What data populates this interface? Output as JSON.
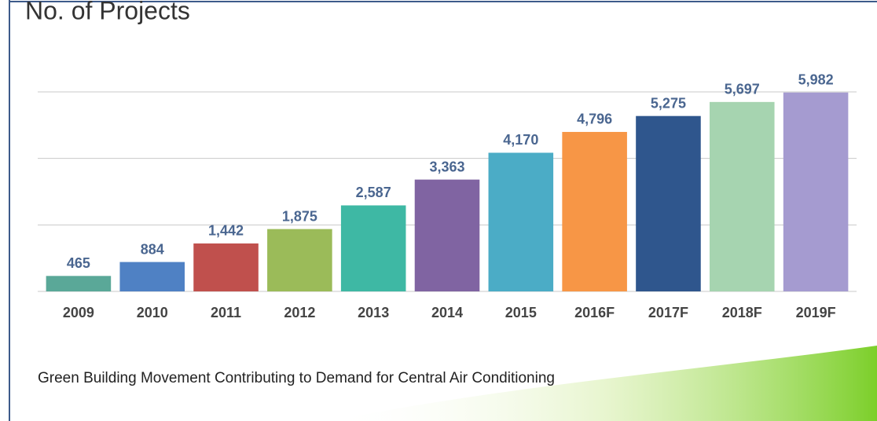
{
  "chart_data": {
    "type": "bar",
    "title": "No. of Projects",
    "caption": "Green Building Movement Contributing to Demand for Central Air Conditioning",
    "categories": [
      "2009",
      "2010",
      "2011",
      "2012",
      "2013",
      "2014",
      "2015",
      "2016F",
      "2017F",
      "2018F",
      "2019F"
    ],
    "values": [
      465,
      884,
      1442,
      1875,
      2587,
      3363,
      4170,
      4796,
      5275,
      5697,
      5982
    ],
    "value_labels": [
      "465",
      "884",
      "1,442",
      "1,875",
      "2,587",
      "3,363",
      "4,170",
      "4,796",
      "5,275",
      "5,697",
      "5,982"
    ],
    "colors": [
      "#5aa898",
      "#4f81c4",
      "#c0504d",
      "#9bbb59",
      "#3eb8a4",
      "#8064a2",
      "#4bacc6",
      "#f79646",
      "#2f568d",
      "#a6d4b0",
      "#a59bd0"
    ],
    "ylim": [
      0,
      6000
    ],
    "yticks": [
      0,
      2000,
      4000,
      6000
    ],
    "grid": true
  }
}
